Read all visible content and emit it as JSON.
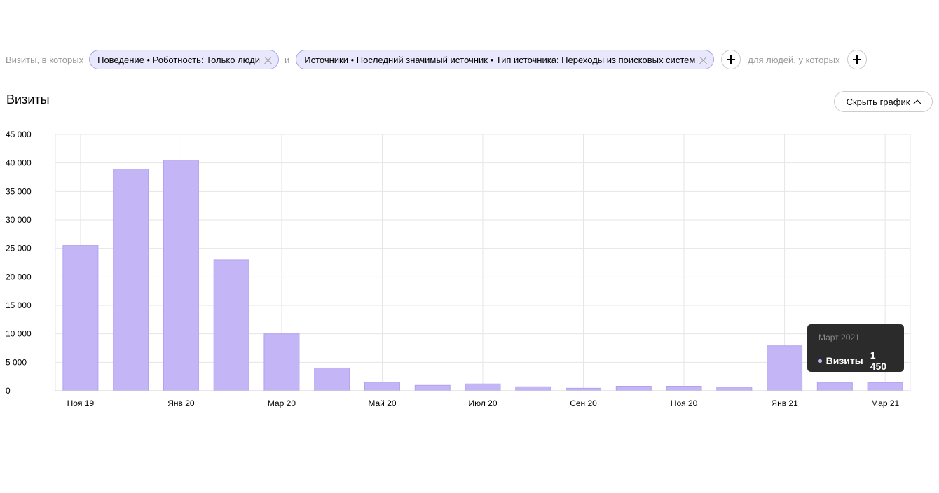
{
  "filters": {
    "prefix": "Визиты, в которых",
    "chip1": "Поведение • Роботность: Только люди",
    "connector": "и",
    "chip2": "Источники • Последний значимый источник • Тип источника: Переходы из поисковых систем",
    "people_label": "для людей, у которых"
  },
  "section": {
    "title": "Визиты",
    "hide_chart_label": "Скрыть график"
  },
  "tooltip": {
    "title": "Март 2021",
    "series": "Визиты",
    "value": "1 450"
  },
  "colors": {
    "bar": "#c4b5f6",
    "bar_stroke": "#b3a1f0",
    "grid": "#e6e6e6",
    "chip_bg": "#e9e7fb",
    "tooltip_bg": "#2b2b2b"
  },
  "chart_data": {
    "type": "bar",
    "categories": [
      "Ноя 19",
      "Дек 19",
      "Янв 20",
      "Фев 20",
      "Мар 20",
      "Апр 20",
      "Май 20",
      "Июн 20",
      "Июл 20",
      "Авг 20",
      "Сен 20",
      "Окт 20",
      "Ноя 20",
      "Дек 20",
      "Янв 21",
      "Фев 21",
      "Мар 21"
    ],
    "series": [
      {
        "name": "Визиты",
        "values": [
          25500,
          38900,
          40500,
          23000,
          10000,
          4000,
          1500,
          950,
          1200,
          700,
          450,
          800,
          800,
          650,
          7900,
          1400,
          1450
        ]
      }
    ],
    "x_tick_labels": [
      "Ноя 19",
      "Янв 20",
      "Мар 20",
      "Май 20",
      "Июл 20",
      "Сен 20",
      "Ноя 20",
      "Янв 21",
      "Мар 21"
    ],
    "y_tick_labels": [
      "0",
      "5 000",
      "10 000",
      "15 000",
      "20 000",
      "25 000",
      "30 000",
      "35 000",
      "40 000",
      "45 000"
    ],
    "ylim": [
      0,
      45000
    ],
    "grid": true,
    "legend": "none"
  }
}
